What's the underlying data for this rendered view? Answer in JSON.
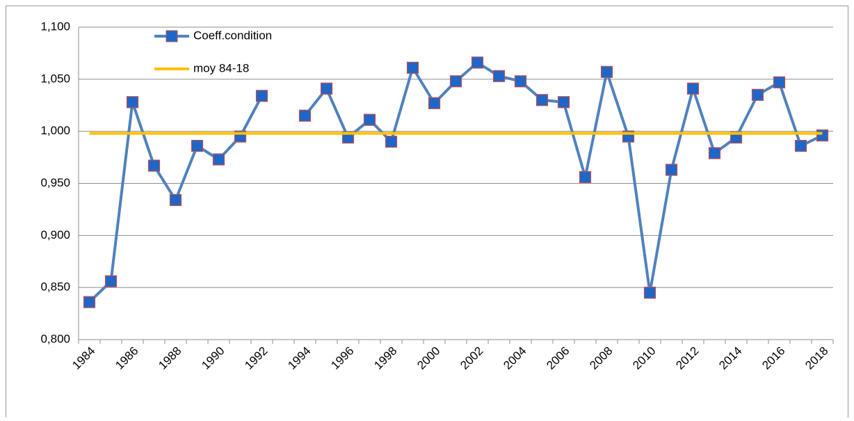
{
  "chart_data": {
    "type": "line",
    "categories": [
      "1984",
      null,
      "1986",
      null,
      "1988",
      null,
      "1990",
      null,
      "1992",
      null,
      "1994",
      null,
      "1996",
      null,
      "1998",
      null,
      "2000",
      null,
      "2002",
      null,
      "2004",
      null,
      "2006",
      null,
      "2008",
      null,
      "2010",
      null,
      "2012",
      null,
      "2014",
      null,
      "2016",
      null,
      "2018"
    ],
    "series": [
      {
        "name": "Coeff.condition",
        "color": "#4f81bd",
        "marker_color": "#1f66c8",
        "marker_edge": "#c0504d",
        "values": [
          0.836,
          0.856,
          1.028,
          0.967,
          0.934,
          0.986,
          0.973,
          0.995,
          1.034,
          null,
          1.015,
          1.041,
          0.994,
          1.011,
          0.99,
          1.061,
          1.027,
          1.048,
          1.066,
          1.053,
          1.048,
          1.03,
          1.028,
          0.956,
          1.057,
          0.995,
          0.845,
          0.963,
          1.041,
          0.979,
          0.994,
          1.035,
          1.047,
          0.986,
          0.996
        ]
      },
      {
        "name": "moy 84-18",
        "color": "#ffc000",
        "values": [
          0.998,
          0.998,
          0.998,
          0.998,
          0.998,
          0.998,
          0.998,
          0.998,
          0.998,
          0.998,
          0.998,
          0.998,
          0.998,
          0.998,
          0.998,
          0.998,
          0.998,
          0.998,
          0.998,
          0.998,
          0.998,
          0.998,
          0.998,
          0.998,
          0.998,
          0.998,
          0.998,
          0.998,
          0.998,
          0.998,
          0.998,
          0.998,
          0.998,
          0.998,
          0.998
        ]
      }
    ],
    "ylim": [
      0.8,
      1.1
    ],
    "yticks": [
      {
        "value": 0.8,
        "label": "0,800"
      },
      {
        "value": 0.85,
        "label": "0,850"
      },
      {
        "value": 0.9,
        "label": "0,900"
      },
      {
        "value": 0.95,
        "label": "0,950"
      },
      {
        "value": 1.0,
        "label": "1,000"
      },
      {
        "value": 1.05,
        "label": "1,050"
      },
      {
        "value": 1.1,
        "label": "1,100"
      }
    ],
    "grid": true,
    "legend": "top-left"
  }
}
